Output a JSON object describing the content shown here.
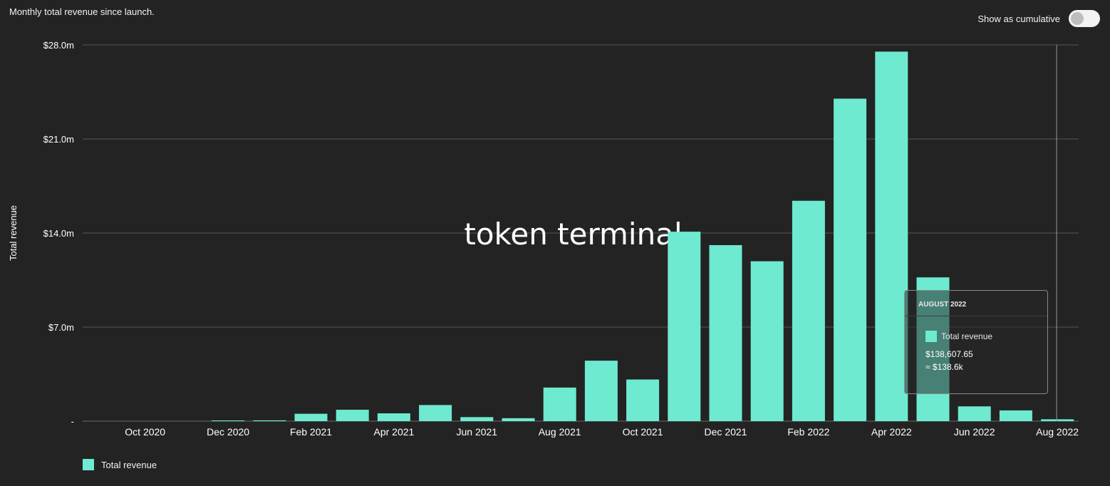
{
  "header": {
    "subtitle": "Monthly total revenue since launch.",
    "toggle_label": "Show as cumulative"
  },
  "watermark": "token terminal_",
  "legend": {
    "label": "Total revenue"
  },
  "tooltip": {
    "title": "AUGUST 2022",
    "series": "Total revenue",
    "value": "$138,607.65",
    "approx": "≈ $138.6k"
  },
  "colors": {
    "background": "#232323",
    "bar": "#6eead0",
    "grid": "#555555"
  },
  "chart_data": {
    "type": "bar",
    "ylabel": "Total revenue",
    "ylim": [
      0,
      28000000
    ],
    "yticks": [
      0,
      7000000,
      14000000,
      21000000,
      28000000
    ],
    "ytick_labels": [
      "-",
      "$7.0m",
      "$14.0m",
      "$21.0m",
      "$28.0m"
    ],
    "xtick_labels": [
      "Oct 2020",
      "Dec 2020",
      "Feb 2021",
      "Apr 2021",
      "Jun 2021",
      "Aug 2021",
      "Oct 2021",
      "Dec 2021",
      "Feb 2022",
      "Apr 2022",
      "Jun 2022",
      "Aug 2022"
    ],
    "categories": [
      "Sep 2020",
      "Oct 2020",
      "Nov 2020",
      "Dec 2020",
      "Jan 2021",
      "Feb 2021",
      "Mar 2021",
      "Apr 2021",
      "May 2021",
      "Jun 2021",
      "Jul 2021",
      "Aug 2021",
      "Sep 2021",
      "Oct 2021",
      "Nov 2021",
      "Dec 2021",
      "Jan 2022",
      "Feb 2022",
      "Mar 2022",
      "Apr 2022",
      "May 2022",
      "Jun 2022",
      "Jul 2022",
      "Aug 2022"
    ],
    "series": [
      {
        "name": "Total revenue",
        "values": [
          0,
          0,
          0,
          20000,
          60000,
          550000,
          850000,
          580000,
          1200000,
          300000,
          220000,
          2500000,
          4500000,
          3100000,
          14100000,
          13100000,
          11900000,
          16400000,
          24000000,
          27500000,
          10700000,
          1100000,
          800000,
          138607.65
        ]
      }
    ]
  }
}
